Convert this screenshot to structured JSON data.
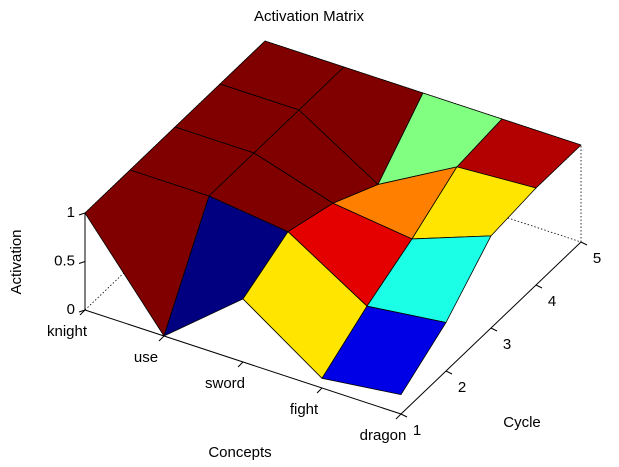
{
  "chart_data": {
    "type": "surface",
    "title": "Activation Matrix",
    "xlabel": "Concepts",
    "ylabel": "Cycle",
    "zlabel": "Activation",
    "categories": [
      "knight",
      "use",
      "sword",
      "fight",
      "dragon"
    ],
    "y": [
      1,
      2,
      3,
      4,
      5
    ],
    "z": [
      [
        1,
        1,
        1,
        1,
        1
      ],
      [
        0,
        1,
        1,
        1,
        1
      ],
      [
        0.65,
        0.9,
        0.75,
        0.5,
        1
      ],
      [
        0.1,
        0.4,
        0.65,
        0.95,
        1
      ],
      [
        0.2,
        0.5,
        0.95,
        1,
        1
      ]
    ],
    "ylim": [
      1,
      5
    ],
    "yticks": [
      1,
      2,
      3,
      4,
      5
    ],
    "zlim": [
      0,
      1
    ],
    "zticks": [
      0,
      0.5,
      1
    ],
    "colormap": "jet",
    "edge_color": "#000000",
    "box": true
  }
}
